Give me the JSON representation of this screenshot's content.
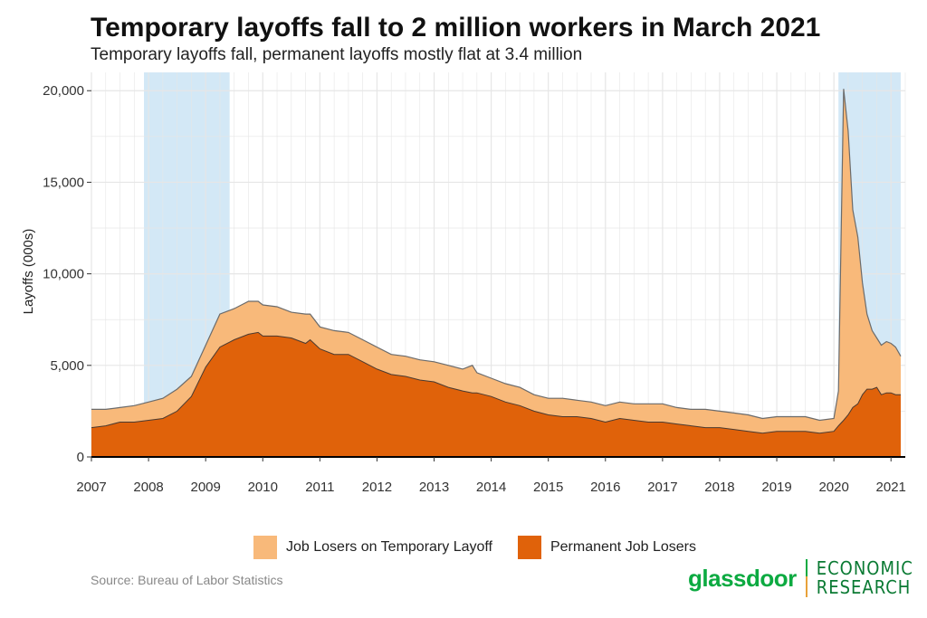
{
  "title": "Temporary layoffs fall to 2 million workers in March 2021",
  "subtitle": "Temporary layoffs fall, permanent layoffs mostly flat at 3.4 million",
  "source": "Source: Bureau of Labor Statistics",
  "brand": {
    "name": "glassdoor",
    "unit_line1": "ECONOMIC",
    "unit_line2": "RESEARCH"
  },
  "colors": {
    "temporary": "#f8b97a",
    "permanent": "#e0620a",
    "recession": "#d3e8f6",
    "outline": "#6b6b6b",
    "grid": "#e6e6e6",
    "brand_green": "#0caa41"
  },
  "chart_data": {
    "type": "area",
    "stacked": true,
    "title": "Temporary layoffs fall to 2 million workers in March 2021",
    "subtitle": "Temporary layoffs fall, permanent layoffs mostly flat at 3.4 million",
    "xlabel": "",
    "ylabel": "Layoffs (000s)",
    "xlim": [
      2007.0,
      2021.25
    ],
    "ylim": [
      0,
      21000
    ],
    "x_ticks": [
      "2007",
      "2008",
      "2009",
      "2010",
      "2011",
      "2012",
      "2013",
      "2014",
      "2015",
      "2016",
      "2017",
      "2018",
      "2019",
      "2020",
      "2021"
    ],
    "y_ticks": [
      0,
      5000,
      10000,
      15000,
      20000
    ],
    "y_tick_labels": [
      "0",
      "5,000",
      "10,000",
      "15,000",
      "20,000"
    ],
    "grid": true,
    "legend_position": "bottom",
    "recessions": [
      [
        2007.92,
        2009.42
      ],
      [
        2020.08,
        2021.17
      ]
    ],
    "x": [
      2007.0,
      2007.25,
      2007.5,
      2007.75,
      2008.0,
      2008.25,
      2008.5,
      2008.75,
      2009.0,
      2009.25,
      2009.5,
      2009.75,
      2009.92,
      2010.0,
      2010.25,
      2010.5,
      2010.75,
      2010.83,
      2011.0,
      2011.25,
      2011.5,
      2011.75,
      2012.0,
      2012.25,
      2012.5,
      2012.75,
      2013.0,
      2013.25,
      2013.5,
      2013.67,
      2013.75,
      2014.0,
      2014.25,
      2014.5,
      2014.75,
      2015.0,
      2015.25,
      2015.5,
      2015.75,
      2016.0,
      2016.25,
      2016.5,
      2016.75,
      2017.0,
      2017.25,
      2017.5,
      2017.75,
      2018.0,
      2018.25,
      2018.5,
      2018.75,
      2019.0,
      2019.25,
      2019.5,
      2019.75,
      2020.0,
      2020.08,
      2020.17,
      2020.25,
      2020.33,
      2020.42,
      2020.5,
      2020.58,
      2020.67,
      2020.75,
      2020.83,
      2020.92,
      2021.0,
      2021.08,
      2021.17
    ],
    "series": [
      {
        "name": "Permanent Job Losers",
        "values": [
          1600,
          1700,
          1900,
          1900,
          2000,
          2100,
          2500,
          3300,
          4900,
          6000,
          6400,
          6700,
          6800,
          6600,
          6600,
          6500,
          6200,
          6400,
          5900,
          5600,
          5600,
          5200,
          4800,
          4500,
          4400,
          4200,
          4100,
          3800,
          3600,
          3500,
          3500,
          3300,
          3000,
          2800,
          2500,
          2300,
          2200,
          2200,
          2100,
          1900,
          2100,
          2000,
          1900,
          1900,
          1800,
          1700,
          1600,
          1600,
          1500,
          1400,
          1300,
          1400,
          1400,
          1400,
          1300,
          1400,
          1700,
          2000,
          2300,
          2700,
          2900,
          3400,
          3700,
          3700,
          3800,
          3400,
          3500,
          3500,
          3400,
          3400
        ]
      },
      {
        "name": "Job Losers on Temporary Layoff",
        "values": [
          1000,
          900,
          800,
          900,
          1000,
          1100,
          1200,
          1100,
          1200,
          1800,
          1700,
          1800,
          1700,
          1700,
          1600,
          1400,
          1600,
          1400,
          1200,
          1300,
          1200,
          1200,
          1200,
          1100,
          1100,
          1100,
          1100,
          1200,
          1200,
          1500,
          1100,
          1000,
          1000,
          1000,
          900,
          900,
          1000,
          900,
          900,
          900,
          900,
          900,
          1000,
          1000,
          900,
          900,
          1000,
          900,
          900,
          900,
          800,
          800,
          800,
          800,
          700,
          700,
          1900,
          18100,
          15500,
          10800,
          9100,
          6100,
          4100,
          3200,
          2700,
          2700,
          2800,
          2700,
          2600,
          2100
        ]
      }
    ]
  }
}
